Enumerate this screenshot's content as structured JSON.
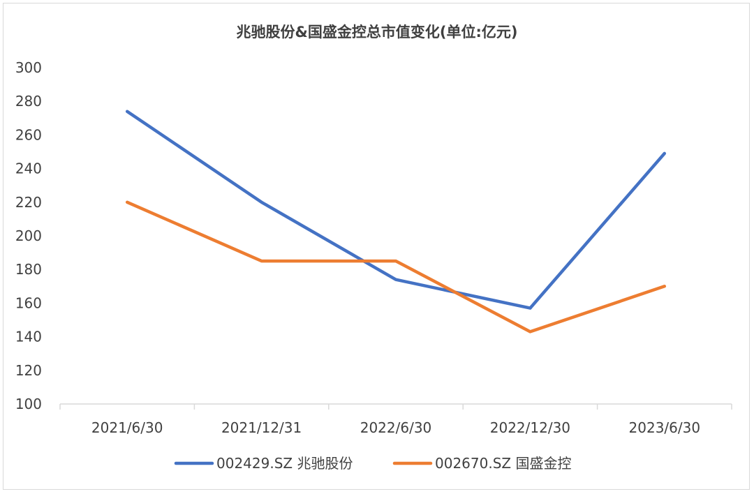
{
  "chart_data": {
    "type": "line",
    "title": "兆驰股份&国盛金控总市值变化(单位:亿元)",
    "categories": [
      "2021/6/30",
      "2021/12/31",
      "2022/6/30",
      "2022/12/30",
      "2023/6/30"
    ],
    "ylim": [
      100,
      300
    ],
    "yticks": [
      100,
      120,
      140,
      160,
      180,
      200,
      220,
      240,
      260,
      280,
      300
    ],
    "grid": false,
    "legend_position": "bottom",
    "series": [
      {
        "name": "002429.SZ 兆驰股份",
        "color": "#4472c4",
        "values": [
          274,
          220,
          174,
          157,
          249
        ]
      },
      {
        "name": "002670.SZ 国盛金控",
        "color": "#ed7d31",
        "values": [
          220,
          185,
          185,
          143,
          170
        ]
      }
    ]
  }
}
